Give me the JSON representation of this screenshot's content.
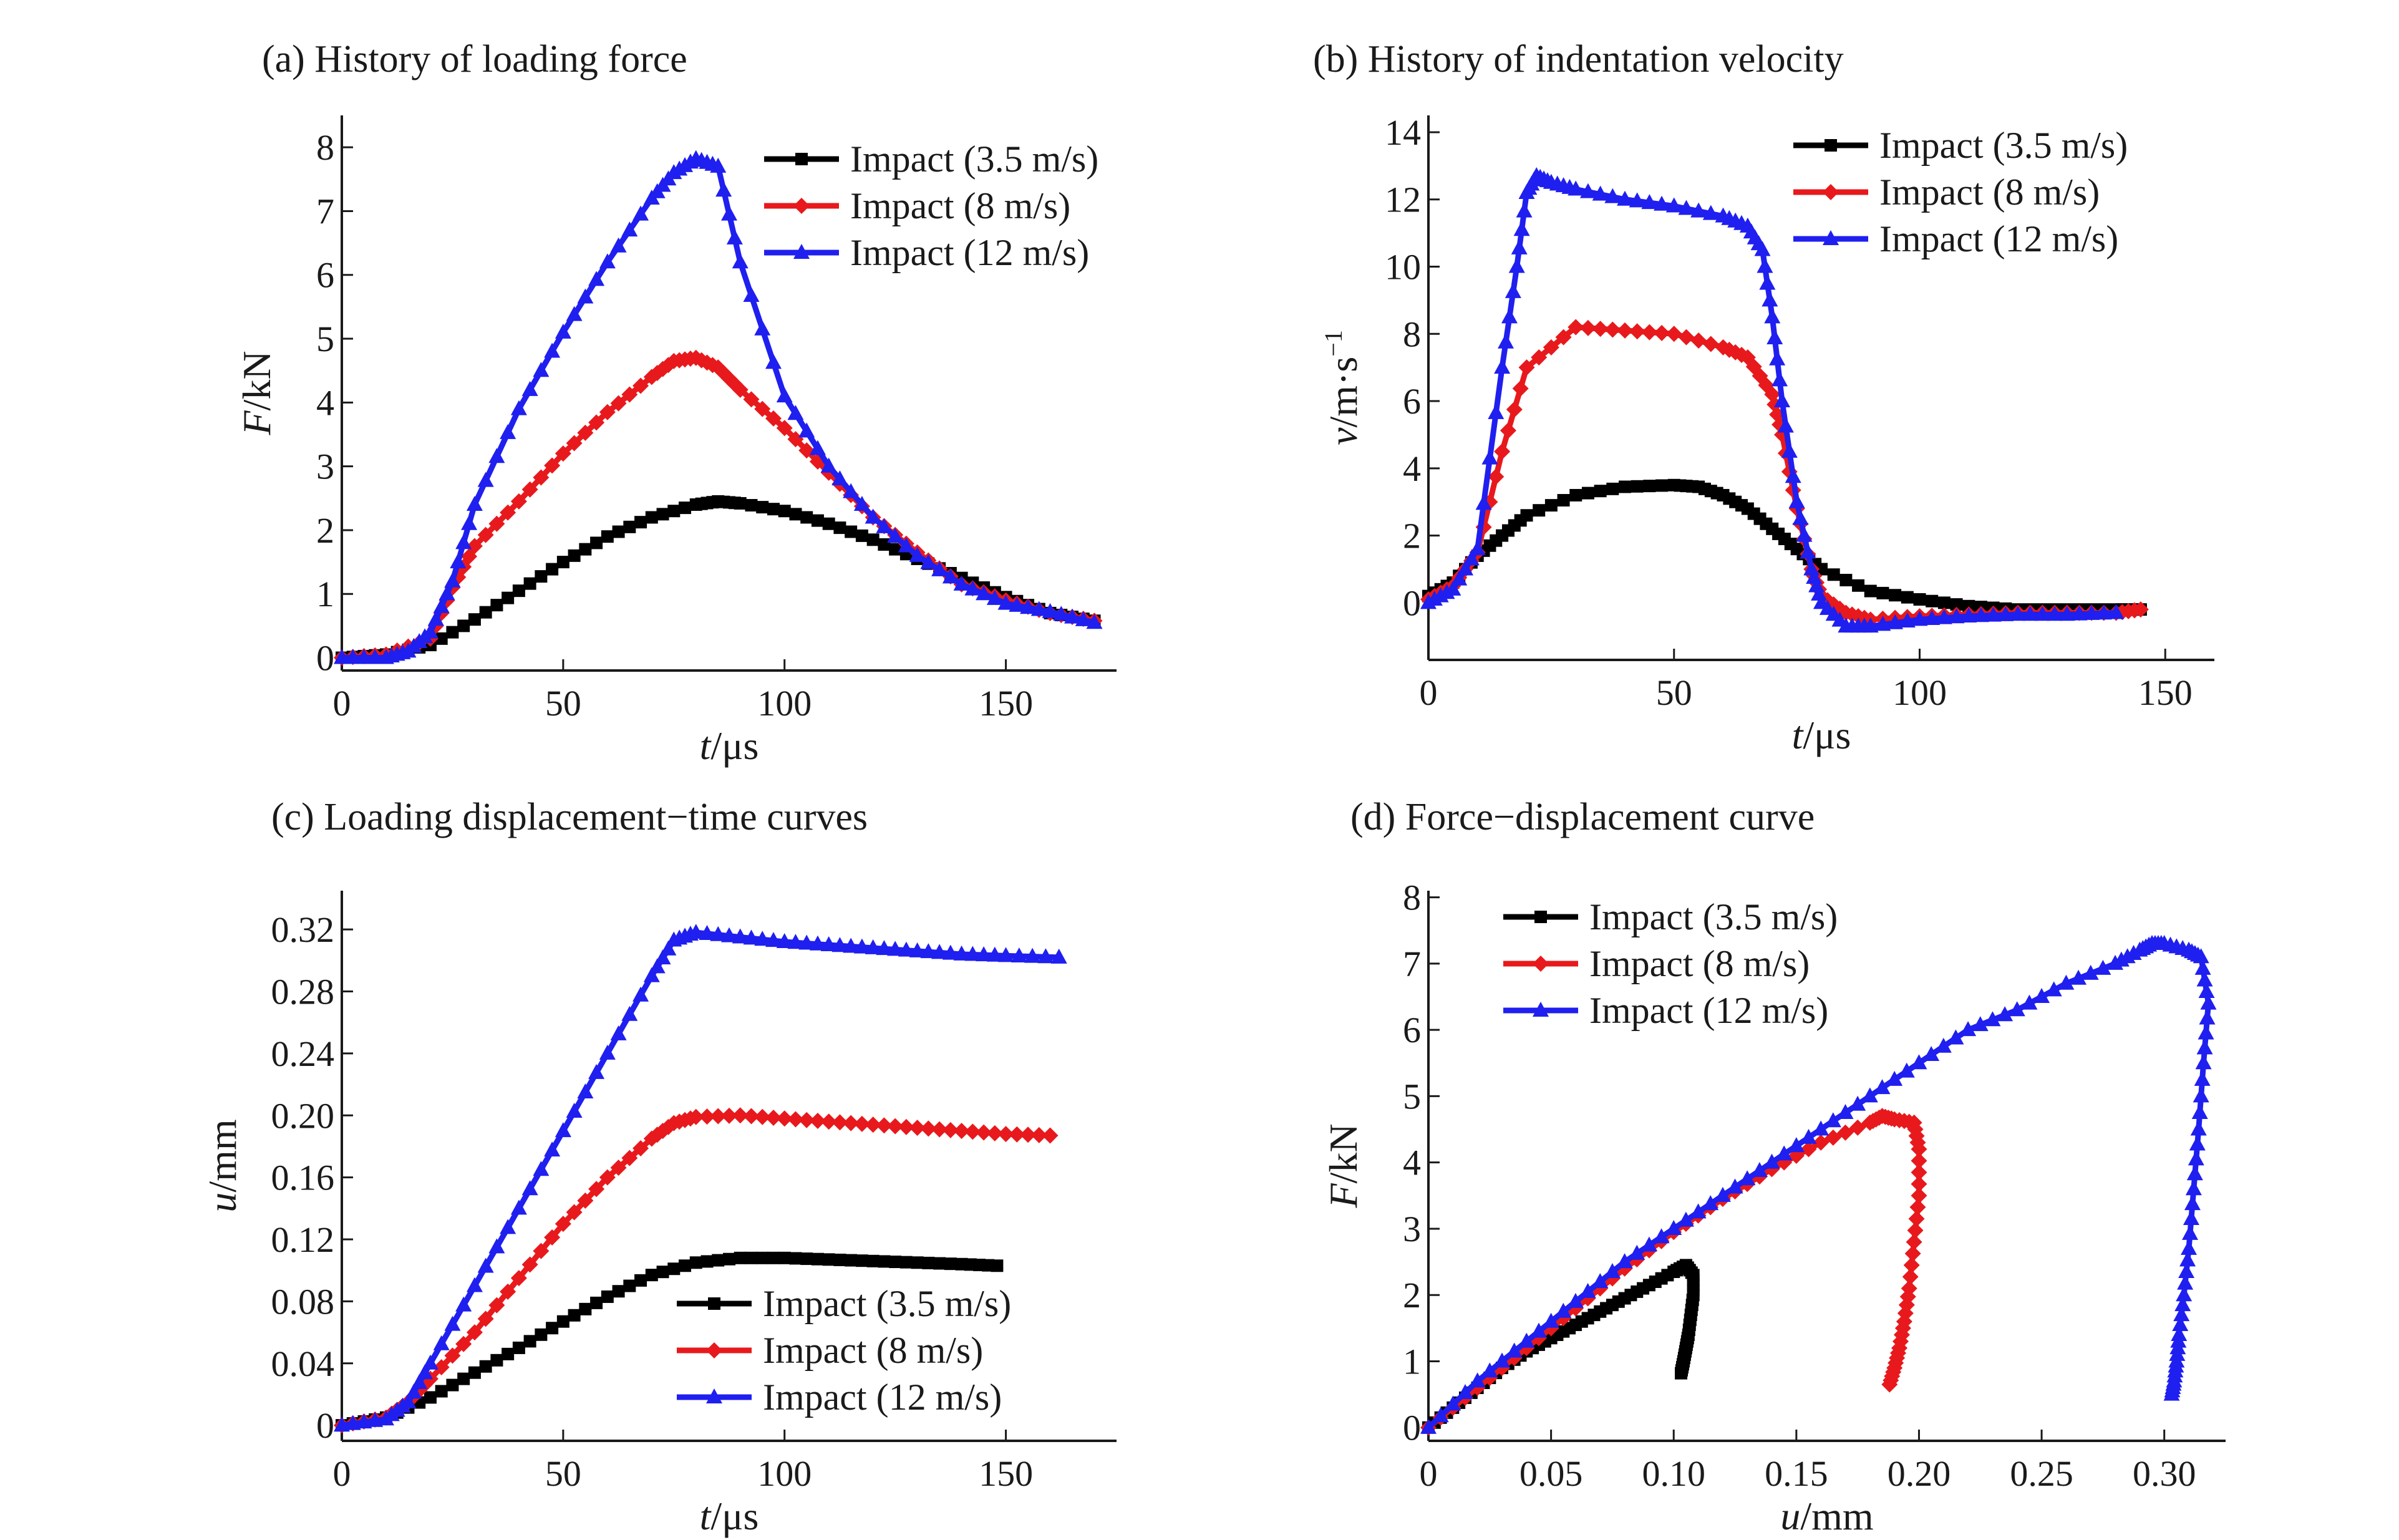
{
  "chart_data": [
    {
      "type": "line",
      "title": "(a) History of loading force",
      "xlabel_var": "t",
      "xlabel_unit": "/μs",
      "ylabel_var": "F",
      "ylabel_unit": "/kN",
      "xlim": [
        0,
        175
      ],
      "ylim": [
        -0.2,
        8.5
      ],
      "xticks": [
        0,
        50,
        100,
        150
      ],
      "yticks": [
        0,
        1,
        2,
        3,
        4,
        5,
        6,
        7,
        8
      ],
      "legend_position": "top-right",
      "series": [
        {
          "name": "Impact (3.5 m/s)",
          "color": "#000000",
          "marker": "square",
          "x": [
            0,
            10,
            20,
            30,
            40,
            50,
            60,
            70,
            80,
            85,
            90,
            100,
            110,
            120,
            130,
            140,
            150,
            160,
            170
          ],
          "y": [
            0,
            0.05,
            0.2,
            0.6,
            1.05,
            1.5,
            1.9,
            2.2,
            2.4,
            2.45,
            2.42,
            2.3,
            2.1,
            1.85,
            1.55,
            1.25,
            0.95,
            0.7,
            0.58
          ]
        },
        {
          "name": "Impact (8 m/s)",
          "color": "#e8191c",
          "marker": "diamond",
          "x": [
            0,
            10,
            20,
            25,
            30,
            40,
            50,
            60,
            70,
            75,
            80,
            85,
            90,
            100,
            110,
            120,
            130,
            140,
            150,
            160,
            170
          ],
          "y": [
            0,
            0.05,
            0.3,
            1.1,
            1.75,
            2.45,
            3.2,
            3.85,
            4.4,
            4.65,
            4.7,
            4.55,
            4.2,
            3.6,
            2.9,
            2.2,
            1.65,
            1.15,
            0.9,
            0.7,
            0.58
          ]
        },
        {
          "name": "Impact (12 m/s)",
          "color": "#1f1ff0",
          "marker": "triangle",
          "x": [
            0,
            10,
            15,
            20,
            25,
            30,
            40,
            50,
            60,
            70,
            75,
            80,
            85,
            90,
            100,
            110,
            120,
            130,
            140,
            150,
            160,
            170
          ],
          "y": [
            0,
            0,
            0.1,
            0.4,
            1.2,
            2.4,
            3.9,
            5.1,
            6.2,
            7.2,
            7.6,
            7.82,
            7.7,
            6.2,
            4.1,
            3.0,
            2.2,
            1.6,
            1.15,
            0.85,
            0.72,
            0.55
          ]
        }
      ]
    },
    {
      "type": "line",
      "title": "(b) History of indentation velocity",
      "xlabel_var": "t",
      "xlabel_unit": "/μs",
      "ylabel_var": "v",
      "ylabel_unit": "/m·s",
      "ylabel_sup": "−1",
      "xlim": [
        0,
        160
      ],
      "ylim": [
        -1.7,
        14.5
      ],
      "xticks": [
        0,
        50,
        100,
        150
      ],
      "yticks": [
        0,
        2,
        4,
        6,
        8,
        10,
        12,
        14
      ],
      "legend_position": "top-right",
      "series": [
        {
          "name": "Impact (3.5 m/s)",
          "color": "#000000",
          "marker": "square",
          "x": [
            0,
            5,
            10,
            15,
            20,
            30,
            40,
            50,
            55,
            60,
            65,
            70,
            75,
            80,
            90,
            100,
            110,
            120,
            130,
            140,
            145
          ],
          "y": [
            0.2,
            0.6,
            1.4,
            2.0,
            2.6,
            3.2,
            3.45,
            3.5,
            3.45,
            3.2,
            2.8,
            2.2,
            1.6,
            1.0,
            0.35,
            0.1,
            -0.1,
            -0.2,
            -0.2,
            -0.2,
            -0.2
          ]
        },
        {
          "name": "Impact (8 m/s)",
          "color": "#e8191c",
          "marker": "diamond",
          "x": [
            0,
            5,
            10,
            15,
            20,
            30,
            40,
            50,
            60,
            65,
            70,
            72,
            75,
            78,
            80,
            85,
            90,
            100,
            110,
            120,
            130,
            140,
            145
          ],
          "y": [
            0.1,
            0.5,
            1.5,
            4.5,
            7.0,
            8.2,
            8.1,
            8.0,
            7.6,
            7.3,
            6.2,
            5.0,
            2.8,
            1.0,
            0.2,
            -0.3,
            -0.5,
            -0.4,
            -0.35,
            -0.3,
            -0.3,
            -0.3,
            -0.2
          ]
        },
        {
          "name": "Impact (12 m/s)",
          "color": "#1f1ff0",
          "marker": "triangle",
          "x": [
            0,
            5,
            10,
            15,
            18,
            20,
            22,
            25,
            30,
            40,
            50,
            60,
            65,
            68,
            70,
            72,
            75,
            78,
            80,
            85,
            90,
            100,
            110,
            120,
            130,
            140
          ],
          "y": [
            0,
            0.4,
            1.6,
            7.0,
            10.0,
            12.2,
            12.7,
            12.5,
            12.3,
            12.0,
            11.8,
            11.5,
            11.2,
            10.5,
            8.5,
            6.0,
            3.0,
            1.0,
            0.0,
            -0.7,
            -0.7,
            -0.5,
            -0.4,
            -0.35,
            -0.35,
            -0.3
          ]
        }
      ]
    },
    {
      "type": "line",
      "title": "(c) Loading displacement−time curves",
      "xlabel_var": "t",
      "xlabel_unit": "/μs",
      "ylabel_var": "u",
      "ylabel_unit": "/mm",
      "xlim": [
        0,
        175
      ],
      "ylim": [
        -0.01,
        0.345
      ],
      "xticks": [
        0,
        50,
        100,
        150
      ],
      "yticks": [
        0,
        0.04,
        0.08,
        0.12,
        0.16,
        0.2,
        0.24,
        0.28,
        0.32
      ],
      "ytick_labels": [
        "0",
        "0.04",
        "0.08",
        "0.12",
        "0.16",
        "0.20",
        "0.24",
        "0.28",
        "0.32"
      ],
      "legend_position": "bottom-right",
      "series": [
        {
          "name": "Impact (3.5 m/s)",
          "color": "#000000",
          "marker": "square",
          "x": [
            0,
            10,
            20,
            30,
            40,
            50,
            60,
            70,
            80,
            90,
            100,
            110,
            120,
            130,
            140,
            148
          ],
          "y": [
            0,
            0.005,
            0.018,
            0.034,
            0.05,
            0.067,
            0.083,
            0.097,
            0.105,
            0.108,
            0.108,
            0.107,
            0.106,
            0.105,
            0.104,
            0.103
          ]
        },
        {
          "name": "Impact (8 m/s)",
          "color": "#e8191c",
          "marker": "diamond",
          "x": [
            0,
            10,
            15,
            20,
            30,
            40,
            50,
            60,
            70,
            75,
            80,
            90,
            100,
            110,
            120,
            130,
            140,
            150,
            160
          ],
          "y": [
            0,
            0.005,
            0.015,
            0.03,
            0.06,
            0.095,
            0.13,
            0.16,
            0.185,
            0.195,
            0.199,
            0.2,
            0.198,
            0.196,
            0.194,
            0.192,
            0.19,
            0.188,
            0.187
          ]
        },
        {
          "name": "Impact (12 m/s)",
          "color": "#1f1ff0",
          "marker": "triangle",
          "x": [
            0,
            10,
            15,
            20,
            30,
            40,
            50,
            60,
            70,
            75,
            80,
            90,
            100,
            110,
            120,
            130,
            140,
            150,
            162
          ],
          "y": [
            0,
            0.004,
            0.015,
            0.04,
            0.09,
            0.14,
            0.19,
            0.24,
            0.29,
            0.313,
            0.318,
            0.315,
            0.312,
            0.31,
            0.308,
            0.306,
            0.304,
            0.303,
            0.302
          ]
        }
      ]
    },
    {
      "type": "line",
      "title": "(d) Force−displacement curve",
      "xlabel_var": "u",
      "xlabel_unit": "/mm",
      "ylabel_var": "F",
      "ylabel_unit": "/kN",
      "xlim": [
        0,
        0.325
      ],
      "ylim": [
        -0.2,
        8.1
      ],
      "xticks": [
        0,
        0.05,
        0.1,
        0.15,
        0.2,
        0.25,
        0.3
      ],
      "xtick_labels": [
        "0",
        "0.05",
        "0.10",
        "0.15",
        "0.20",
        "0.25",
        "0.30"
      ],
      "yticks": [
        0,
        1,
        2,
        3,
        4,
        5,
        6,
        7,
        8
      ],
      "legend_position": "top-left",
      "series": [
        {
          "name": "Impact (3.5 m/s)",
          "color": "#000000",
          "marker": "square",
          "x": [
            0,
            0.01,
            0.02,
            0.03,
            0.04,
            0.05,
            0.06,
            0.07,
            0.08,
            0.09,
            0.1,
            0.105,
            0.108,
            0.108,
            0.107,
            0.106,
            0.105,
            0.104,
            0.103
          ],
          "y": [
            0,
            0.3,
            0.6,
            0.9,
            1.15,
            1.35,
            1.55,
            1.75,
            1.95,
            2.15,
            2.35,
            2.45,
            2.3,
            2.0,
            1.7,
            1.4,
            1.2,
            1.0,
            0.82
          ]
        },
        {
          "name": "Impact (8 m/s)",
          "color": "#e8191c",
          "marker": "diamond",
          "x": [
            0,
            0.02,
            0.04,
            0.06,
            0.08,
            0.1,
            0.12,
            0.14,
            0.16,
            0.18,
            0.185,
            0.19,
            0.198,
            0.2,
            0.2,
            0.198,
            0.196,
            0.194,
            0.192,
            0.19,
            0.188
          ],
          "y": [
            0,
            0.6,
            1.2,
            1.8,
            2.4,
            2.95,
            3.45,
            3.9,
            4.3,
            4.6,
            4.7,
            4.65,
            4.6,
            4.2,
            3.5,
            2.8,
            2.1,
            1.6,
            1.2,
            0.9,
            0.65
          ]
        },
        {
          "name": "Impact (12 m/s)",
          "color": "#1f1ff0",
          "marker": "triangle",
          "x": [
            0,
            0.02,
            0.04,
            0.06,
            0.08,
            0.1,
            0.12,
            0.14,
            0.16,
            0.18,
            0.2,
            0.22,
            0.24,
            0.26,
            0.28,
            0.29,
            0.295,
            0.3,
            0.31,
            0.315,
            0.318,
            0.316,
            0.314,
            0.312,
            0.31,
            0.308,
            0.306,
            0.305,
            0.304,
            0.303
          ],
          "y": [
            0,
            0.7,
            1.3,
            1.9,
            2.5,
            3.0,
            3.5,
            4.0,
            4.5,
            5.0,
            5.5,
            6.0,
            6.3,
            6.7,
            7.0,
            7.2,
            7.3,
            7.3,
            7.2,
            7.1,
            6.4,
            5.5,
            4.5,
            3.6,
            2.7,
            2.0,
            1.4,
            1.0,
            0.7,
            0.5
          ]
        }
      ]
    }
  ]
}
